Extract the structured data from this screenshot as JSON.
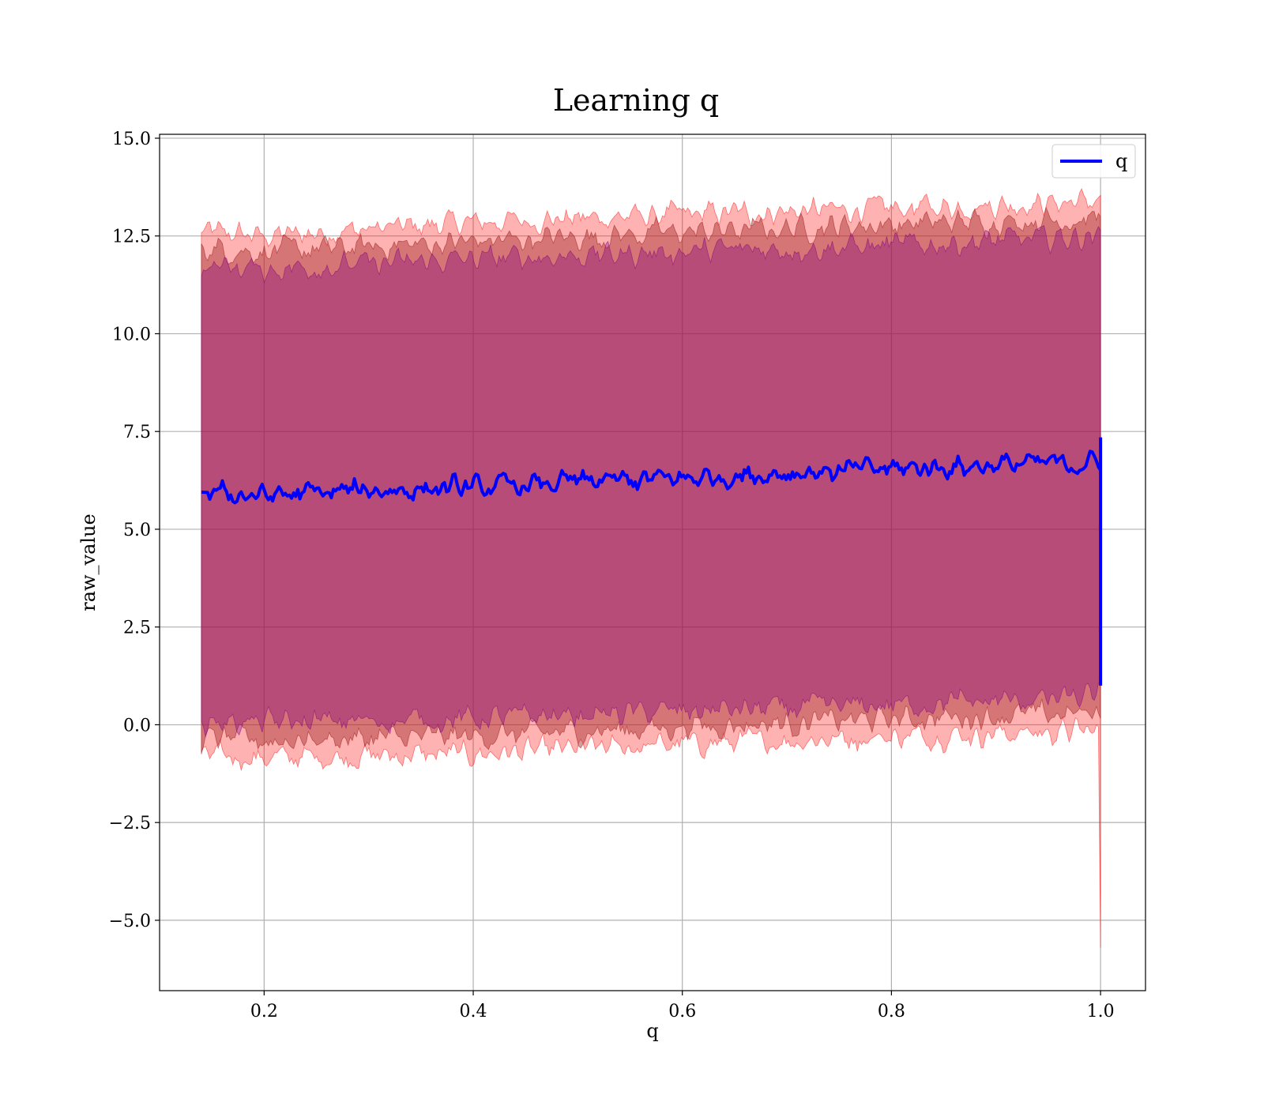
{
  "chart_data": {
    "type": "line",
    "title": "Learning q",
    "xlabel": "q",
    "ylabel": "raw_value",
    "xlim": [
      0.1,
      1.043
    ],
    "ylim": [
      -6.8,
      15.1
    ],
    "x_ticks": [
      0.2,
      0.4,
      0.6,
      0.8,
      1.0
    ],
    "x_tick_labels": [
      "0.2",
      "0.4",
      "0.6",
      "0.8",
      "1.0"
    ],
    "y_ticks": [
      -5.0,
      -2.5,
      0.0,
      2.5,
      5.0,
      7.5,
      10.0,
      12.5,
      15.0
    ],
    "y_tick_labels": [
      "−5.0",
      "−2.5",
      "0.0",
      "2.5",
      "5.0",
      "7.5",
      "10.0",
      "12.5",
      "15.0"
    ],
    "grid": true,
    "legend": {
      "position": "top-right",
      "entries": [
        "q"
      ]
    },
    "x_start": 0.14,
    "x_end": 1.0,
    "series": [
      {
        "name": "q",
        "color": "#0000ff",
        "mean_trend": {
          "x": [
            0.14,
            0.2,
            0.3,
            0.4,
            0.5,
            0.6,
            0.7,
            0.8,
            0.9,
            1.0
          ],
          "y": [
            5.95,
            5.85,
            6.0,
            6.05,
            6.2,
            6.3,
            6.45,
            6.55,
            6.65,
            6.7
          ]
        },
        "final_vertical_segment": {
          "x": 1.0,
          "y_min": 1.0,
          "y_max": 7.35
        }
      }
    ],
    "bands": [
      {
        "role": "outer",
        "color": "#ff0000",
        "opacity": 0.3,
        "upper": {
          "x": [
            0.14,
            0.2,
            0.4,
            0.6,
            0.8,
            1.0
          ],
          "y": [
            12.6,
            12.5,
            12.85,
            13.05,
            13.2,
            13.4
          ]
        },
        "lower": {
          "x": [
            0.14,
            0.2,
            0.4,
            0.6,
            0.8,
            1.0
          ],
          "y": [
            -0.8,
            -0.85,
            -0.75,
            -0.5,
            -0.3,
            -0.15
          ]
        },
        "spike_at_end": -5.7
      },
      {
        "role": "middle",
        "color": "#a52a2a",
        "opacity": 0.45,
        "upper": {
          "x": [
            0.14,
            0.2,
            0.4,
            0.6,
            0.8,
            1.0
          ],
          "y": [
            12.2,
            12.1,
            12.35,
            12.6,
            12.8,
            12.95
          ]
        },
        "lower": {
          "x": [
            0.14,
            0.2,
            0.4,
            0.6,
            0.8,
            1.0
          ],
          "y": [
            -0.35,
            -0.4,
            -0.3,
            -0.05,
            0.15,
            0.3
          ]
        }
      },
      {
        "role": "inner",
        "color": "#800080",
        "opacity": 0.35,
        "upper": {
          "x": [
            0.14,
            0.2,
            0.4,
            0.6,
            0.8,
            1.0
          ],
          "y": [
            11.75,
            11.65,
            11.9,
            12.1,
            12.25,
            12.5
          ]
        },
        "lower": {
          "x": [
            0.14,
            0.2,
            0.4,
            0.6,
            0.8,
            1.0
          ],
          "y": [
            0.1,
            0.05,
            0.15,
            0.35,
            0.5,
            0.7
          ]
        }
      }
    ]
  }
}
